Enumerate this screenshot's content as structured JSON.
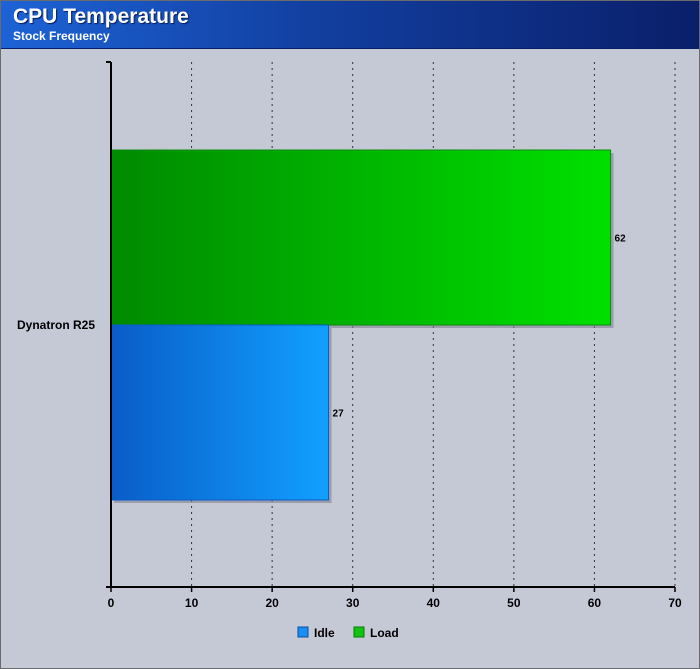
{
  "header": {
    "title": "CPU Temperature",
    "subtitle": "Stock Frequency"
  },
  "chart_data": {
    "type": "bar",
    "orientation": "horizontal",
    "title": "CPU Temperature",
    "subtitle": "Stock Frequency",
    "categories": [
      "Dynatron R25"
    ],
    "series": [
      {
        "name": "Idle",
        "values": [
          27
        ],
        "color": "#1a8ff0"
      },
      {
        "name": "Load",
        "values": [
          62
        ],
        "color": "#11c411"
      }
    ],
    "xlim": [
      0,
      70
    ],
    "xticks": [
      0,
      10,
      20,
      30,
      40,
      50,
      60,
      70
    ],
    "grid": true,
    "legend": "bottom-center",
    "background": "#c5c9d6"
  }
}
